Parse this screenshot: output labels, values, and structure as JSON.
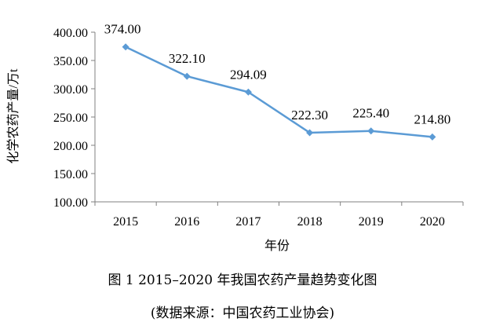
{
  "chart_data": {
    "type": "line",
    "x": [
      "2015",
      "2016",
      "2017",
      "2018",
      "2019",
      "2020"
    ],
    "values": [
      374.0,
      322.1,
      294.09,
      222.3,
      225.4,
      214.8
    ],
    "data_labels": [
      "374.00",
      "322.10",
      "294.09",
      "222.30",
      "225.40",
      "214.80"
    ],
    "xlabel": "年份",
    "ylabel": "化学农药产量/万t",
    "ylim": [
      100,
      400
    ],
    "yticks": [
      "100.00",
      "150.00",
      "200.00",
      "250.00",
      "300.00",
      "350.00",
      "400.00"
    ],
    "grid": false,
    "legend": "none",
    "line_color": "#5b9bd5",
    "marker": "diamond"
  },
  "caption": {
    "title": "图 1    2015–2020 年我国农药产量趋势变化图",
    "source": "(数据来源：中国农药工业协会)"
  }
}
